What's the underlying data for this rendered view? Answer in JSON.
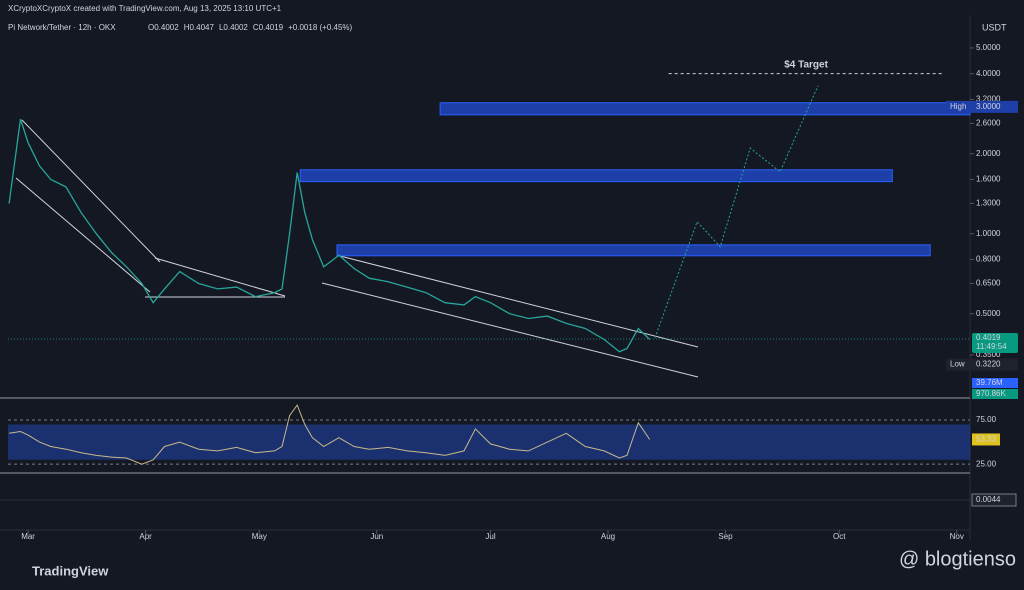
{
  "header": {
    "credit": "XCryptoXCryptoX created with TradingView.com, Aug 13, 2025 13:10 UTC+1",
    "symbol": "Pi Network/Tether · 12h · OKX",
    "ohlc": [
      "O0.4002",
      "H0.4047",
      "L0.4002",
      "C0.4019",
      "+0.0018 (+0.45%)"
    ]
  },
  "footer": {
    "brand": "TradingView",
    "watermark": "@ blogtienso"
  },
  "chart_data": {
    "type": "line",
    "log_scale": true,
    "currency": "USDT",
    "color": "#26a69a",
    "x": [
      -5,
      -2,
      0,
      3,
      6,
      10,
      14,
      18,
      22,
      26,
      30,
      33,
      36,
      40,
      45,
      50,
      55,
      60,
      65,
      67,
      69,
      71,
      73,
      75,
      78,
      82,
      86,
      90,
      95,
      100,
      105,
      110,
      115,
      118,
      122,
      127,
      132,
      137,
      142,
      147,
      152,
      156,
      158,
      161,
      164
    ],
    "values": [
      1.3,
      2.7,
      2.2,
      1.8,
      1.6,
      1.5,
      1.2,
      1.0,
      0.85,
      0.75,
      0.65,
      0.55,
      0.62,
      0.72,
      0.65,
      0.62,
      0.63,
      0.58,
      0.6,
      0.62,
      1.0,
      1.7,
      1.2,
      0.95,
      0.75,
      0.83,
      0.74,
      0.68,
      0.66,
      0.63,
      0.6,
      0.55,
      0.54,
      0.58,
      0.55,
      0.5,
      0.48,
      0.49,
      0.46,
      0.44,
      0.4,
      0.36,
      0.37,
      0.44,
      0.4
    ],
    "xlim": [
      -5.3,
      248.5
    ],
    "xticks": [
      {
        "value": 0,
        "label": "Mar"
      },
      {
        "value": 31,
        "label": "Apr"
      },
      {
        "value": 61,
        "label": "May"
      },
      {
        "value": 92,
        "label": "Jun"
      },
      {
        "value": 122,
        "label": "Jul"
      },
      {
        "value": 153,
        "label": "Aug"
      },
      {
        "value": 184,
        "label": "Sep"
      },
      {
        "value": 214,
        "label": "Oct"
      },
      {
        "value": 245,
        "label": "Nov"
      }
    ],
    "ylim": [
      0.241,
      6.65
    ],
    "yticks": [
      {
        "value": 5,
        "label": "5.0000"
      },
      {
        "value": 4,
        "label": "4.0000"
      },
      {
        "value": 3.2,
        "label": "3.2000"
      },
      {
        "value": 2.6,
        "label": "2.6000"
      },
      {
        "value": 2,
        "label": "2.0000"
      },
      {
        "value": 1.6,
        "label": "1.6000"
      },
      {
        "value": 1.3,
        "label": "1.3000"
      },
      {
        "value": 1,
        "label": "1.0000"
      },
      {
        "value": 0.8,
        "label": "0.8000"
      },
      {
        "value": 0.65,
        "label": "0.6500"
      },
      {
        "value": 0.5,
        "label": "0.5000"
      },
      {
        "value": 0.35,
        "label": "0.3500"
      }
    ],
    "zones": [
      {
        "x": [
          108.7,
          248.5
        ],
        "values": [
          2.8,
          3.11
        ]
      },
      {
        "x": [
          71.8,
          228
        ],
        "values": [
          1.57,
          1.74
        ]
      },
      {
        "x": [
          81.5,
          238
        ],
        "values": [
          0.826,
          0.908
        ]
      }
    ],
    "projection": {
      "x": [
        165.4,
        176.5,
        182.6,
        190.5,
        198.4,
        208.4
      ],
      "values": [
        0.406,
        1.11,
        0.893,
        2.1,
        1.71,
        3.6
      ]
    },
    "target": {
      "label": "$4 Target",
      "value": 4,
      "x": [
        169,
        241.5
      ]
    },
    "high": {
      "label": "High",
      "value": 3,
      "value_label": "3.0000"
    },
    "low": {
      "label": "Low",
      "value": 0.322,
      "value_label": "0.3220"
    },
    "last": {
      "value": 0.4019,
      "value_label": "0.4019",
      "countdown": "11:49:54"
    },
    "volume_labels": [
      "39.76M",
      "970.86K"
    ],
    "rsi": {
      "color": "#c9b98a",
      "values": [
        60,
        62,
        58,
        50,
        45,
        42,
        38,
        35,
        33,
        32,
        25,
        30,
        45,
        50,
        42,
        40,
        44,
        38,
        40,
        45,
        80,
        92,
        70,
        55,
        45,
        55,
        45,
        42,
        44,
        40,
        38,
        35,
        40,
        65,
        48,
        42,
        40,
        50,
        60,
        45,
        40,
        32,
        35,
        72,
        53
      ],
      "ylim": [
        15,
        100
      ],
      "yticks": [
        {
          "value": 75,
          "label": "75.00"
        },
        {
          "value": 25,
          "label": "25.00"
        }
      ],
      "band": [
        30,
        70
      ],
      "last_label": "53.33"
    },
    "macd": {
      "last_label": "0.0044"
    }
  }
}
